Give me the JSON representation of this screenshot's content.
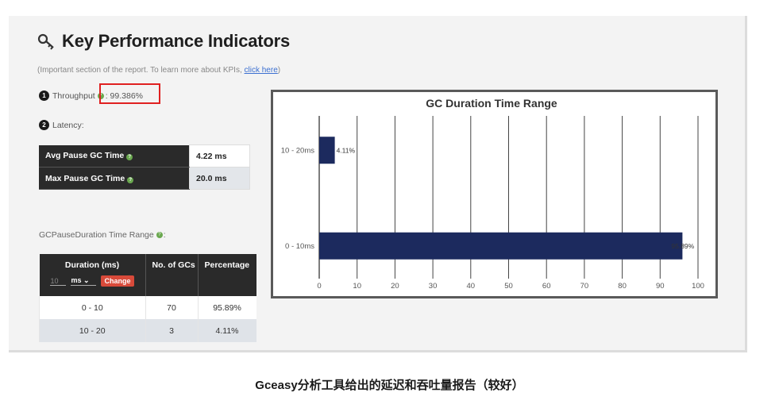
{
  "header": {
    "title": "Key Performance Indicators",
    "subtitle_prefix": "(Important section of the report. To learn more about KPIs, ",
    "subtitle_link": "click here",
    "subtitle_suffix": ")"
  },
  "throughput": {
    "number": "1",
    "label": "Throughput",
    "value": ": 99.386%"
  },
  "latency": {
    "number": "2",
    "label": "Latency:",
    "rows": [
      {
        "label": "Avg Pause GC Time",
        "value": "4.22 ms"
      },
      {
        "label": "Max Pause GC Time",
        "value": "20.0 ms"
      }
    ]
  },
  "range_section": {
    "title": "GCPauseDuration Time Range",
    "headers": {
      "duration": "Duration (ms)",
      "count": "No. of GCs",
      "percentage": "Percentage"
    },
    "control": {
      "input_placeholder": "10",
      "unit": "ms",
      "button": "Change"
    },
    "rows": [
      {
        "duration": "0 - 10",
        "count": "70",
        "percentage": "95.89%"
      },
      {
        "duration": "10 - 20",
        "count": "3",
        "percentage": "4.11%"
      }
    ]
  },
  "chart_data": {
    "type": "bar",
    "orientation": "horizontal",
    "title": "GC Duration Time Range",
    "categories": [
      "10 - 20ms",
      "0 - 10ms"
    ],
    "values": [
      4.11,
      95.89
    ],
    "value_labels": [
      "4.11%",
      "95.89%"
    ],
    "xlim": [
      0,
      100
    ],
    "xticks": [
      "0",
      "10",
      "20",
      "30",
      "40",
      "50",
      "60",
      "70",
      "80",
      "90",
      "100"
    ],
    "grid": true,
    "bar_color": "#1c2a5e"
  },
  "caption": "Gceasy分析工具给出的延迟和吞吐量报告（较好）"
}
